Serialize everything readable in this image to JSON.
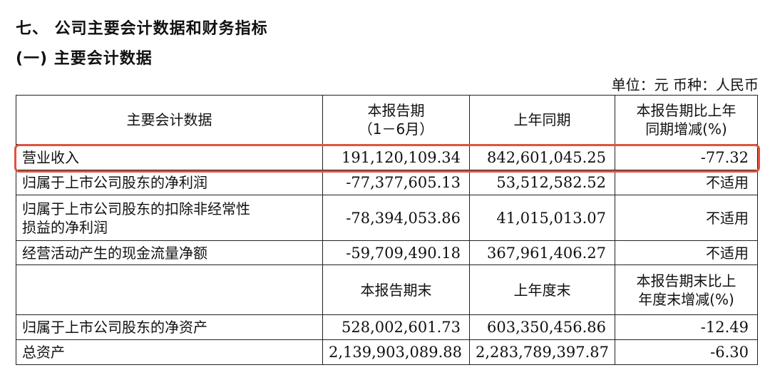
{
  "heading": "七、  公司主要会计数据和财务指标",
  "subheading": "(一) 主要会计数据",
  "unit_note": "单位：元   币种：人民币",
  "table": {
    "header1": {
      "col1": "主要会计数据",
      "col2_line1": "本报告期",
      "col2_line2": "（1－6月）",
      "col3": "上年同期",
      "col4_line1": "本报告期比上年",
      "col4_line2": "同期增减(%)"
    },
    "rows1": [
      {
        "label": "营业收入",
        "current": "191,120,109.34",
        "prior": "842,601,045.25",
        "change": "-77.32"
      },
      {
        "label": "归属于上市公司股东的净利润",
        "current": "-77,377,605.13",
        "prior": "53,512,582.52",
        "change": "不适用"
      },
      {
        "label_line1": "归属于上市公司股东的扣除非经常性",
        "label_line2": "损益的净利润",
        "current": "-78,394,053.86",
        "prior": "41,015,013.07",
        "change": "不适用"
      },
      {
        "label": "经营活动产生的现金流量净额",
        "current": "-59,709,490.18",
        "prior": "367,961,406.27",
        "change": "不适用"
      }
    ],
    "header2": {
      "col2": "本报告期末",
      "col3": "上年度末",
      "col4_line1": "本报告期末比上",
      "col4_line2": "年度末增减(%)"
    },
    "rows2": [
      {
        "label": "归属于上市公司股东的净资产",
        "current": "528,002,601.73",
        "prior": "603,350,456.86",
        "change": "-12.49"
      },
      {
        "label": "总资产",
        "current": "2,139,903,089.88",
        "prior": "2,283,789,397.87",
        "change": "-6.30"
      }
    ]
  },
  "highlight_color": "#e0533c"
}
